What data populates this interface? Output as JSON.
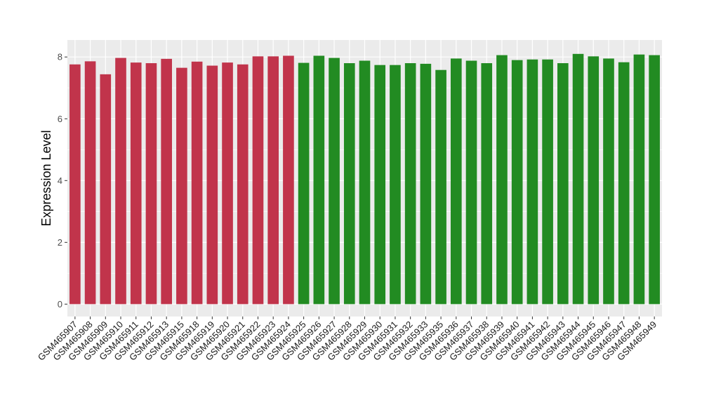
{
  "chart_data": {
    "type": "bar",
    "title": "",
    "xlabel": "",
    "ylabel": "Expression Level",
    "ylim": [
      -0.4,
      8.55
    ],
    "yticks": [
      0,
      2,
      4,
      6,
      8
    ],
    "grid": true,
    "categories": [
      "GSM465907",
      "GSM465908",
      "GSM465909",
      "GSM465910",
      "GSM465911",
      "GSM465912",
      "GSM465913",
      "GSM465915",
      "GSM465918",
      "GSM465919",
      "GSM465920",
      "GSM465921",
      "GSM465922",
      "GSM465923",
      "GSM465924",
      "GSM465925",
      "GSM465926",
      "GSM465927",
      "GSM465928",
      "GSM465929",
      "GSM465930",
      "GSM465931",
      "GSM465932",
      "GSM465933",
      "GSM465935",
      "GSM465936",
      "GSM465937",
      "GSM465938",
      "GSM465939",
      "GSM465940",
      "GSM465941",
      "GSM465942",
      "GSM465943",
      "GSM465944",
      "GSM465945",
      "GSM465946",
      "GSM465947",
      "GSM465948",
      "GSM465949"
    ],
    "values": [
      7.76,
      7.86,
      7.44,
      7.97,
      7.82,
      7.8,
      7.94,
      7.65,
      7.85,
      7.72,
      7.82,
      7.76,
      8.02,
      8.02,
      8.04,
      7.81,
      8.04,
      7.97,
      7.8,
      7.88,
      7.74,
      7.74,
      7.8,
      7.78,
      7.58,
      7.95,
      7.88,
      7.8,
      8.06,
      7.9,
      7.92,
      7.92,
      7.8,
      8.1,
      8.02,
      7.95,
      7.83,
      8.08,
      8.06
    ],
    "group_sizes": [
      15,
      24
    ],
    "colors": [
      "#c1344b",
      "#228b22"
    ],
    "panel_background": "#ebebeb",
    "gridline_color": "#ffffff"
  }
}
